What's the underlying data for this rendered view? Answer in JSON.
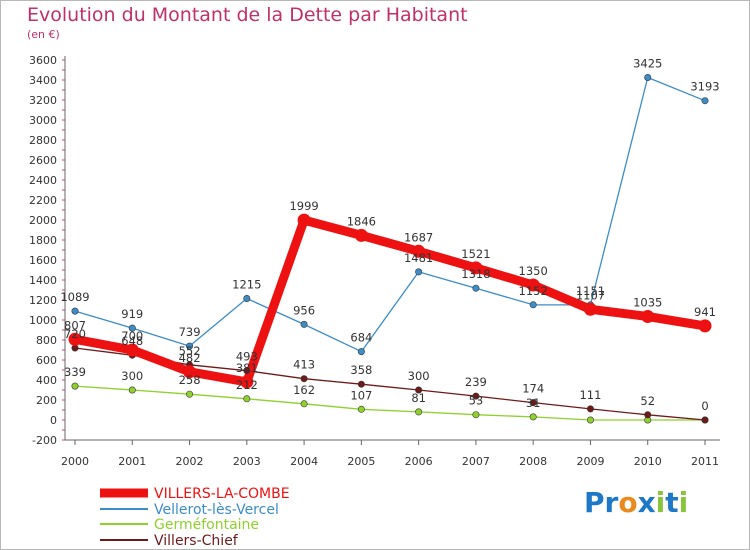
{
  "chart_data": {
    "type": "line",
    "title": "Evolution du Montant de la Dette par Habitant",
    "subtitle": "(en €)",
    "xlabel": "",
    "ylabel": "",
    "ylim": [
      -200,
      3600
    ],
    "y_ticks": [
      -200,
      0,
      200,
      400,
      600,
      800,
      1000,
      1200,
      1400,
      1600,
      1800,
      2000,
      2200,
      2400,
      2600,
      2800,
      3000,
      3200,
      3400,
      3600
    ],
    "categories": [
      "2000",
      "2001",
      "2002",
      "2003",
      "2004",
      "2005",
      "2006",
      "2007",
      "2008",
      "2009",
      "2010",
      "2011"
    ],
    "grid": false,
    "legend_position": "bottom-left",
    "series": [
      {
        "name": "VILLERS-LA-COMBE",
        "color": "#ee1111",
        "values": [
          807,
          700,
          482,
          381,
          1999,
          1846,
          1687,
          1521,
          1350,
          1107,
          1035,
          941
        ],
        "labels": [
          "807",
          "700",
          "482",
          "381",
          "1999",
          "1846",
          "1687",
          "1521",
          "1350",
          "1107",
          "1035",
          "941"
        ]
      },
      {
        "name": "Vellerot-lès-Vercel",
        "color": "#3c8cc8",
        "values": [
          1089,
          919,
          739,
          1215,
          956,
          684,
          1481,
          1318,
          1152,
          1151,
          3425,
          3193
        ],
        "labels": [
          "1089",
          "919",
          "739",
          "1215",
          "956",
          "684",
          "1481",
          "1318",
          "1152",
          "1151",
          "3425",
          "3193"
        ]
      },
      {
        "name": "Germéfontaine",
        "color": "#8ed02c",
        "values": [
          339,
          300,
          258,
          212,
          162,
          107,
          81,
          53,
          31,
          0,
          0,
          0
        ],
        "labels": [
          "339",
          "300",
          "258",
          "212",
          "162",
          "107",
          "81",
          "53",
          "31",
          "",
          "",
          ""
        ]
      },
      {
        "name": "Villers-Chief",
        "color": "#6e1a1a",
        "values": [
          720,
          648,
          552,
          493,
          413,
          358,
          300,
          239,
          174,
          111,
          52,
          0
        ],
        "labels": [
          "720",
          "648",
          "552",
          "493",
          "413",
          "358",
          "300",
          "239",
          "174",
          "111",
          "52",
          "0"
        ]
      }
    ]
  },
  "brand": {
    "letters": [
      "P",
      "r",
      "o",
      "x",
      "i",
      "t",
      "i"
    ],
    "colors": [
      "#1e78c8",
      "#1e78c8",
      "#e88a1c",
      "#1e78c8",
      "#8ac43c",
      "#1e78c8",
      "#8ac43c"
    ]
  }
}
